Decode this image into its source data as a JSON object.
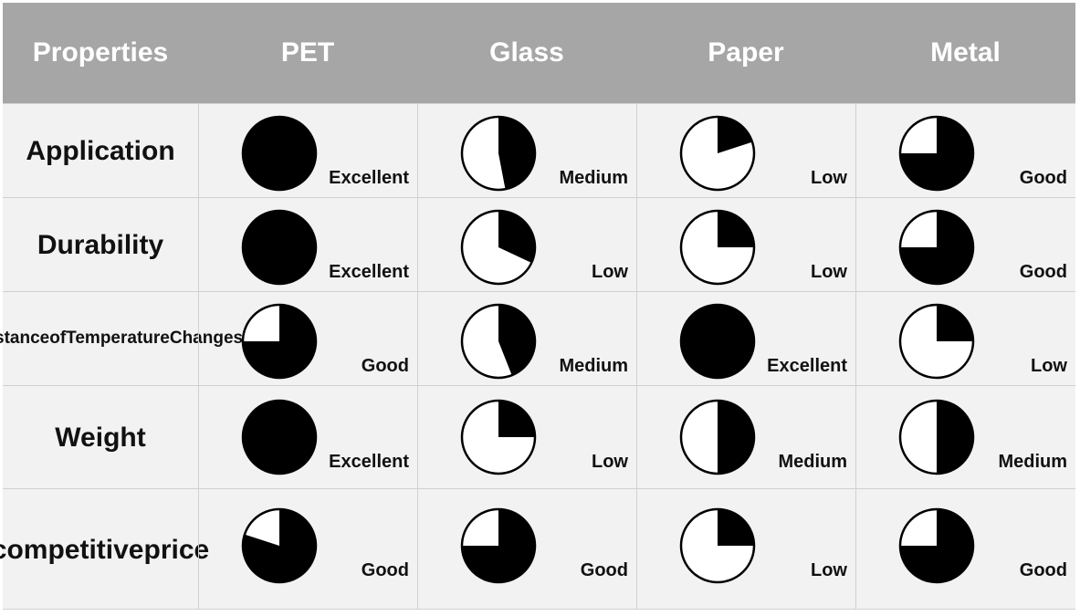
{
  "chart_data": {
    "type": "table",
    "columns": [
      "Properties",
      "PET",
      "Glass",
      "Paper",
      "Metal"
    ],
    "rows": [
      {
        "label": "Application",
        "cells": [
          {
            "rating": "Excellent",
            "fill": 1.0
          },
          {
            "rating": "Medium",
            "fill": 0.47
          },
          {
            "rating": "Low",
            "fill": 0.2
          },
          {
            "rating": "Good",
            "fill": 0.75
          }
        ]
      },
      {
        "label": "Durability",
        "cells": [
          {
            "rating": "Excellent",
            "fill": 1.0
          },
          {
            "rating": "Low",
            "fill": 0.32
          },
          {
            "rating": "Low",
            "fill": 0.25
          },
          {
            "rating": "Good",
            "fill": 0.75
          }
        ]
      },
      {
        "label": "Resistance of Temperature Changes",
        "label_lines": [
          "Resistance",
          "of",
          "Temperature",
          "Changes"
        ],
        "cells": [
          {
            "rating": "Good",
            "fill": 0.75
          },
          {
            "rating": "Medium",
            "fill": 0.44
          },
          {
            "rating": "Excellent",
            "fill": 1.0
          },
          {
            "rating": "Low",
            "fill": 0.25
          }
        ]
      },
      {
        "label": "Weight",
        "cells": [
          {
            "rating": "Excellent",
            "fill": 1.0
          },
          {
            "rating": "Low",
            "fill": 0.25
          },
          {
            "rating": "Medium",
            "fill": 0.5
          },
          {
            "rating": "Medium",
            "fill": 0.5
          }
        ]
      },
      {
        "label": "competitive price",
        "label_lines": [
          "competitive",
          "price"
        ],
        "cells": [
          {
            "rating": "Good",
            "fill": 0.8
          },
          {
            "rating": "Good",
            "fill": 0.75
          },
          {
            "rating": "Low",
            "fill": 0.25
          },
          {
            "rating": "Good",
            "fill": 0.75
          }
        ]
      }
    ],
    "colors": {
      "header_bg": "#a6a6a6",
      "header_text": "#ffffff",
      "cell_bg": "#f2f2f2",
      "pie_fill": "#000000",
      "pie_empty": "#ffffff"
    }
  }
}
